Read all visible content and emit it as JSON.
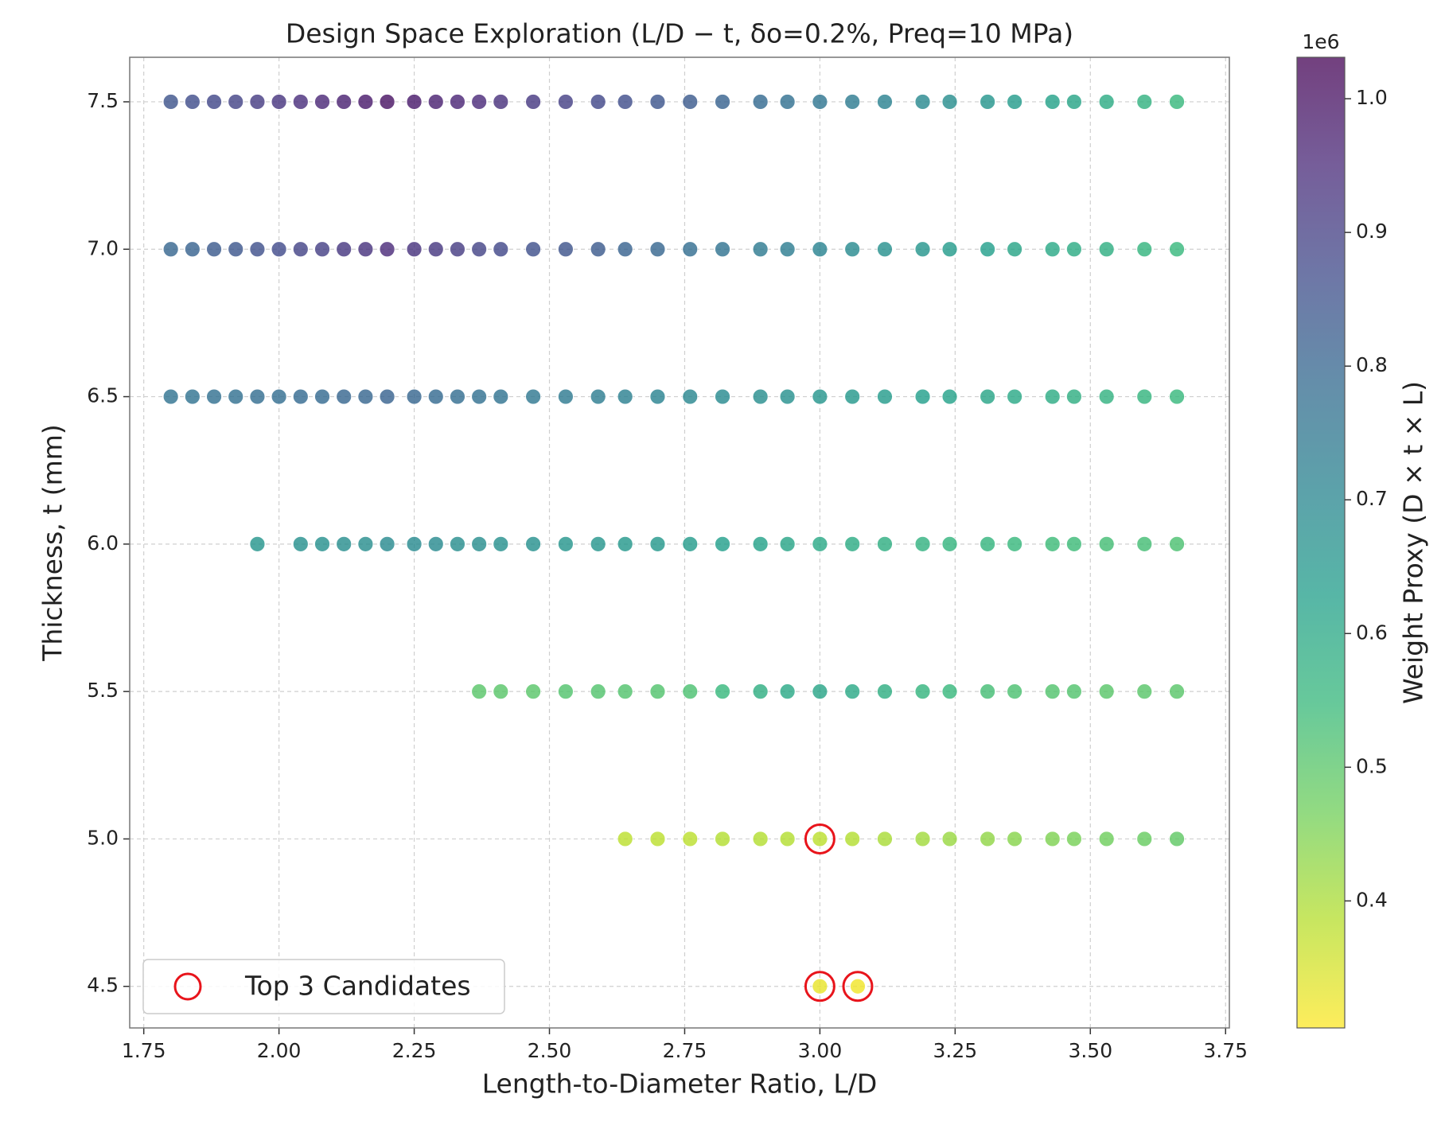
{
  "chart_data": {
    "type": "scatter",
    "title": "Design Space Exploration (L/D − t, δo=0.2%, Preq=10 MPa)",
    "x_label": "Length-to-Diameter Ratio, L/D",
    "y_label": "Thickness, t (mm)",
    "colorbar_label": "Weight Proxy (D × t × L)",
    "colorbar_offset": "1e6",
    "colormap": "viridis_r",
    "grid": true,
    "legend": "lower left",
    "xlim": [
      1.724,
      3.757
    ],
    "ylim": [
      4.359,
      7.651
    ],
    "clim": [
      305000,
      1031000
    ],
    "xticks": [
      1.75,
      {
        "value": 2,
        "label": "2.00"
      },
      2.25,
      {
        "value": 2.5,
        "label": "2.50"
      },
      2.75,
      {
        "value": 3,
        "label": "3.00"
      },
      3.25,
      {
        "value": 3.5,
        "label": "3.50"
      },
      3.75
    ],
    "yticks": [
      4.5,
      {
        "value": 5,
        "label": "5.0"
      },
      5.5,
      {
        "value": 6,
        "label": "6.0"
      },
      6.5,
      {
        "value": 7,
        "label": "7.0"
      },
      7.5
    ],
    "cticks": [
      {
        "value": 400000,
        "label": "0.4"
      },
      {
        "value": 500000,
        "label": "0.5"
      },
      {
        "value": 600000,
        "label": "0.6"
      },
      {
        "value": 700000,
        "label": "0.7"
      },
      {
        "value": 800000,
        "label": "0.8"
      },
      {
        "value": 900000,
        "label": "0.9"
      },
      {
        "value": 1000000,
        "label": "1.0"
      }
    ],
    "x": [
      1.8,
      1.84,
      1.88,
      1.92,
      1.96,
      2,
      2.04,
      2.08,
      2.12,
      2.16,
      2.2,
      2.25,
      2.29,
      2.33,
      2.37,
      2.41,
      2.47,
      2.53,
      2.59,
      2.64,
      2.7,
      2.76,
      2.82,
      2.89,
      2.94,
      3,
      3.06,
      3.12,
      3.19,
      3.24,
      3.31,
      3.36,
      3.43,
      3.47,
      3.53,
      3.6,
      3.66,
      1.8,
      1.84,
      1.88,
      1.92,
      1.96,
      2,
      2.04,
      2.08,
      2.12,
      2.16,
      2.2,
      2.25,
      2.29,
      2.33,
      2.37,
      2.41,
      2.47,
      2.53,
      2.59,
      2.64,
      2.7,
      2.76,
      2.82,
      2.89,
      2.94,
      3,
      3.06,
      3.12,
      3.19,
      3.24,
      3.31,
      3.36,
      3.43,
      3.47,
      3.53,
      3.6,
      3.66,
      1.8,
      1.84,
      1.88,
      1.92,
      1.96,
      2,
      2.04,
      2.08,
      2.12,
      2.16,
      2.2,
      2.25,
      2.29,
      2.33,
      2.37,
      2.41,
      2.47,
      2.53,
      2.59,
      2.64,
      2.7,
      2.76,
      2.82,
      2.89,
      2.94,
      3,
      3.06,
      3.12,
      3.19,
      3.24,
      3.31,
      3.36,
      3.43,
      3.47,
      3.53,
      3.6,
      3.66,
      1.96,
      2.04,
      2.08,
      2.12,
      2.16,
      2.2,
      2.25,
      2.29,
      2.33,
      2.37,
      2.41,
      2.47,
      2.53,
      2.59,
      2.64,
      2.7,
      2.76,
      2.82,
      2.89,
      2.94,
      3,
      3.06,
      3.12,
      3.19,
      3.24,
      3.31,
      3.36,
      3.43,
      3.47,
      3.53,
      3.6,
      3.66,
      2.37,
      2.41,
      2.47,
      2.53,
      2.59,
      2.64,
      2.7,
      2.76,
      2.82,
      2.89,
      2.94,
      3,
      3.06,
      3.12,
      3.19,
      3.24,
      3.31,
      3.36,
      3.43,
      3.47,
      3.53,
      3.6,
      3.66,
      2.64,
      2.7,
      2.76,
      2.82,
      2.89,
      2.94,
      3,
      3.06,
      3.12,
      3.19,
      3.24,
      3.31,
      3.36,
      3.43,
      3.47,
      3.53,
      3.6,
      3.66,
      3,
      3.07
    ],
    "values": [
      7.5,
      7.5,
      7.5,
      7.5,
      7.5,
      7.5,
      7.5,
      7.5,
      7.5,
      7.5,
      7.5,
      7.5,
      7.5,
      7.5,
      7.5,
      7.5,
      7.5,
      7.5,
      7.5,
      7.5,
      7.5,
      7.5,
      7.5,
      7.5,
      7.5,
      7.5,
      7.5,
      7.5,
      7.5,
      7.5,
      7.5,
      7.5,
      7.5,
      7.5,
      7.5,
      7.5,
      7.5,
      7,
      7,
      7,
      7,
      7,
      7,
      7,
      7,
      7,
      7,
      7,
      7,
      7,
      7,
      7,
      7,
      7,
      7,
      7,
      7,
      7,
      7,
      7,
      7,
      7,
      7,
      7,
      7,
      7,
      7,
      7,
      7,
      7,
      7,
      7,
      7,
      7,
      6.5,
      6.5,
      6.5,
      6.5,
      6.5,
      6.5,
      6.5,
      6.5,
      6.5,
      6.5,
      6.5,
      6.5,
      6.5,
      6.5,
      6.5,
      6.5,
      6.5,
      6.5,
      6.5,
      6.5,
      6.5,
      6.5,
      6.5,
      6.5,
      6.5,
      6.5,
      6.5,
      6.5,
      6.5,
      6.5,
      6.5,
      6.5,
      6.5,
      6.5,
      6.5,
      6.5,
      6.5,
      6,
      6,
      6,
      6,
      6,
      6,
      6,
      6,
      6,
      6,
      6,
      6,
      6,
      6,
      6,
      6,
      6,
      6,
      6,
      6,
      6,
      6,
      6,
      6,
      6,
      6,
      6,
      6,
      6,
      6,
      6,
      6,
      5.5,
      5.5,
      5.5,
      5.5,
      5.5,
      5.5,
      5.5,
      5.5,
      5.5,
      5.5,
      5.5,
      5.5,
      5.5,
      5.5,
      5.5,
      5.5,
      5.5,
      5.5,
      5.5,
      5.5,
      5.5,
      5.5,
      5.5,
      5,
      5,
      5,
      5,
      5,
      5,
      5,
      5,
      5,
      5,
      5,
      5,
      5,
      5,
      5,
      5,
      5,
      5,
      4.5,
      4.5
    ],
    "color_values": [
      850000,
      865000,
      880000,
      890000,
      910000,
      925000,
      940000,
      955000,
      970000,
      985000,
      1000000,
      985000,
      970000,
      960000,
      950000,
      935000,
      915000,
      900000,
      880000,
      865000,
      845000,
      830000,
      810000,
      790000,
      770000,
      755000,
      735000,
      715000,
      695000,
      680000,
      660000,
      640000,
      620000,
      610000,
      590000,
      570000,
      550000,
      800000,
      810000,
      830000,
      840000,
      860000,
      870000,
      890000,
      900000,
      920000,
      930000,
      950000,
      930000,
      920000,
      910000,
      890000,
      880000,
      860000,
      850000,
      830000,
      810000,
      800000,
      780000,
      760000,
      740000,
      730000,
      710000,
      690000,
      670000,
      660000,
      640000,
      630000,
      610000,
      600000,
      590000,
      580000,
      560000,
      550000,
      760000,
      760000,
      770000,
      770000,
      780000,
      780000,
      790000,
      790000,
      800000,
      800000,
      810000,
      800000,
      790000,
      780000,
      770000,
      760000,
      750000,
      740000,
      730000,
      720000,
      710000,
      700000,
      690000,
      680000,
      670000,
      660000,
      650000,
      640000,
      630000,
      620000,
      610000,
      600000,
      590000,
      580000,
      570000,
      560000,
      550000,
      660000,
      670000,
      670000,
      680000,
      680000,
      690000,
      690000,
      690000,
      680000,
      680000,
      670000,
      670000,
      660000,
      660000,
      650000,
      650000,
      640000,
      630000,
      620000,
      610000,
      600000,
      590000,
      580000,
      570000,
      560000,
      560000,
      550000,
      540000,
      540000,
      530000,
      530000,
      520000,
      500000,
      500000,
      500000,
      510000,
      510000,
      510000,
      510000,
      520000,
      550000,
      580000,
      600000,
      610000,
      600000,
      580000,
      560000,
      550000,
      530000,
      520000,
      510000,
      510000,
      500000,
      500000,
      500000,
      380000,
      380000,
      380000,
      390000,
      390000,
      390000,
      380000,
      390000,
      400000,
      410000,
      420000,
      430000,
      440000,
      450000,
      460000,
      470000,
      480000,
      490000,
      330000,
      320000
    ],
    "candidates": {
      "name": "Top 3 Candidates",
      "color": "#e8141b",
      "x": [
        3,
        3,
        3.07
      ],
      "values": [
        5,
        4.5,
        4.5
      ]
    }
  }
}
